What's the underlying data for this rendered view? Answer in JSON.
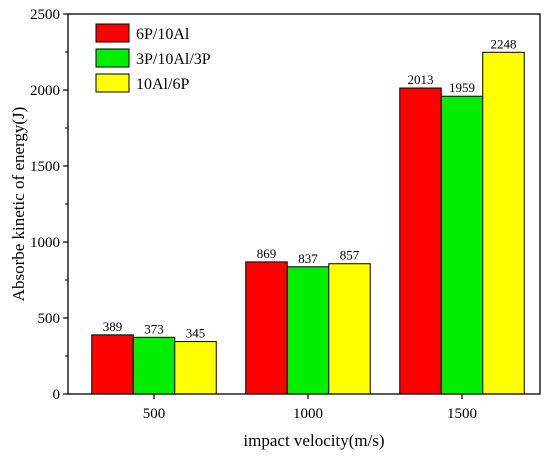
{
  "chart_data": {
    "type": "bar",
    "title": "",
    "xlabel": "impact velocity(m/s)",
    "ylabel": "Absorbe kinetic of energy(J)",
    "categories": [
      "500",
      "1000",
      "1500"
    ],
    "series": [
      {
        "name": "6P/10Al",
        "color": "#ff0000",
        "values": [
          389,
          869,
          2013
        ]
      },
      {
        "name": "3P/10Al/3P",
        "color": "#00ee00",
        "values": [
          373,
          837,
          1959
        ]
      },
      {
        "name": "10Al/6P",
        "color": "#ffff00",
        "values": [
          345,
          857,
          2248
        ]
      }
    ],
    "ylim": [
      0,
      2500
    ],
    "yticks": [
      0,
      500,
      1000,
      1500,
      2000,
      2500
    ],
    "grid": false,
    "legend_position": "top-left"
  }
}
